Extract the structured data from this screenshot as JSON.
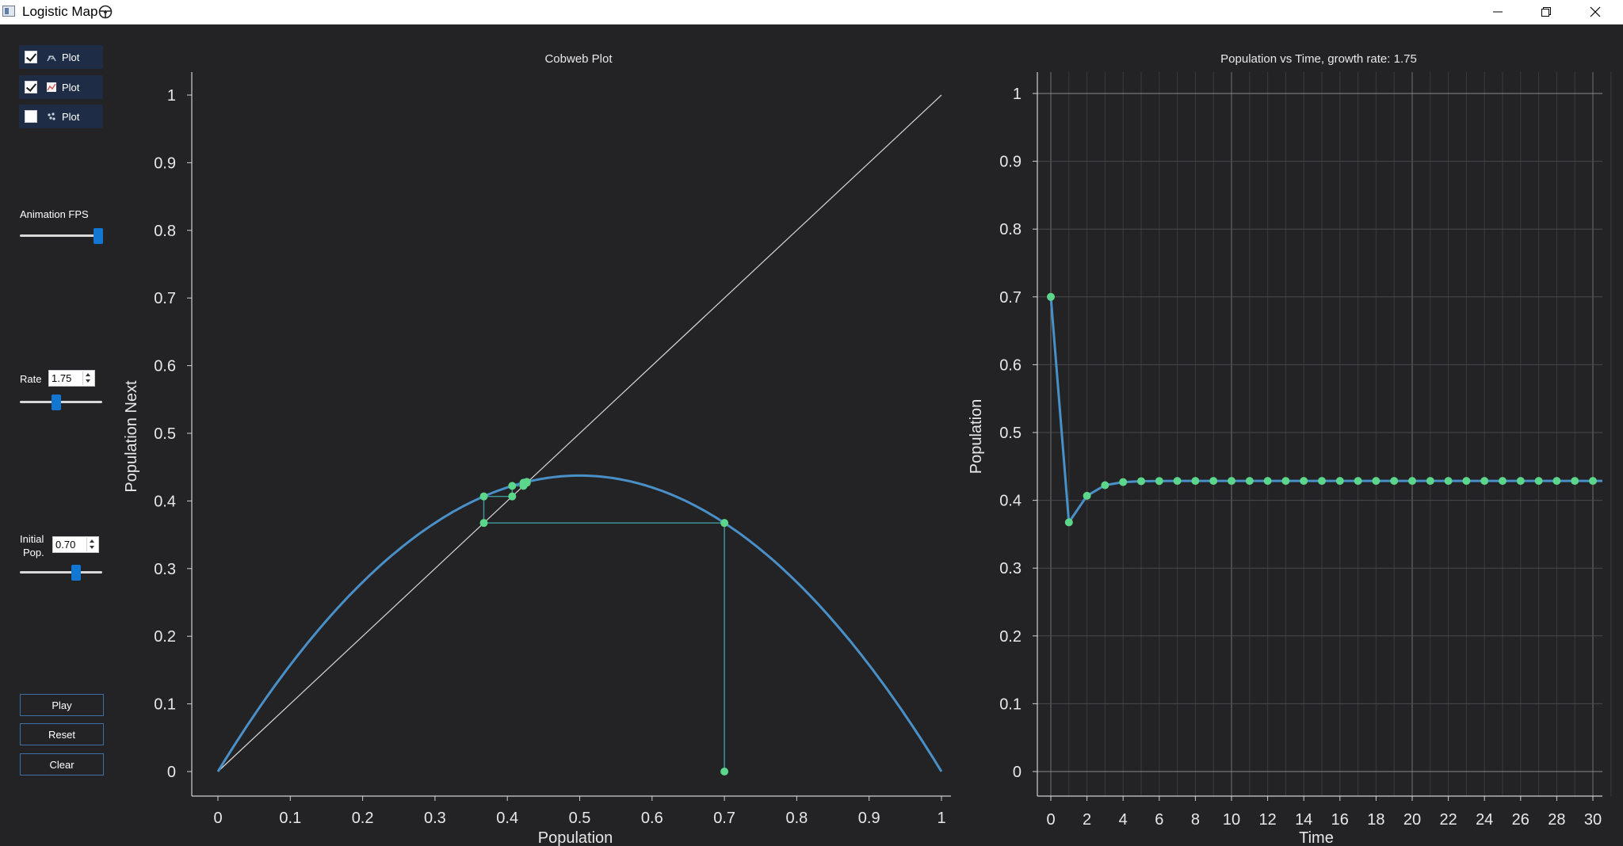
{
  "window": {
    "title": "Logistic Map",
    "controls": {
      "minimize": "minimize-icon",
      "maximize": "restore-icon",
      "close": "close-icon"
    }
  },
  "sidebar": {
    "plot_toggles": [
      {
        "label": "Plot",
        "checked": true,
        "icon": "cobweb-plot-icon"
      },
      {
        "label": "Plot",
        "checked": true,
        "icon": "line-plot-icon"
      },
      {
        "label": "Plot",
        "checked": false,
        "icon": "scatter-plot-icon"
      }
    ],
    "fps": {
      "label": "Animation FPS",
      "level": 0.95
    },
    "rate": {
      "label": "Rate",
      "value": "1.75",
      "level": 0.44
    },
    "initial_pop": {
      "label_line1": "Initial",
      "label_line2": "Pop.",
      "value": "0.70",
      "level": 0.68
    },
    "buttons": {
      "play": "Play",
      "reset": "Reset",
      "clear": "Clear"
    }
  },
  "colors": {
    "background": "#232325",
    "curve": "#4a90c8",
    "points": "#5cd68a",
    "cobweb": "#3f9aa0",
    "diagonal": "#d8d8d8",
    "accent": "#1277d3"
  },
  "chart_data": [
    {
      "type": "line",
      "title": "Cobweb Plot",
      "xlabel": "Population",
      "ylabel": "Population Next",
      "xlim": [
        0,
        1
      ],
      "ylim": [
        0,
        1
      ],
      "xticks": [
        "0",
        "0.1",
        "0.2",
        "0.3",
        "0.4",
        "0.5",
        "0.6",
        "0.7",
        "0.8",
        "0.9",
        "1"
      ],
      "yticks": [
        "0",
        "0.1",
        "0.2",
        "0.3",
        "0.4",
        "0.5",
        "0.6",
        "0.7",
        "0.8",
        "0.9",
        "1"
      ],
      "grid": false,
      "rate": 1.75,
      "initial_population": 0.7,
      "series": [
        {
          "kind": "logistic-curve",
          "r": 1.75
        },
        {
          "kind": "diagonal",
          "x": [
            0,
            1
          ],
          "y": [
            0,
            1
          ]
        },
        {
          "kind": "cobweb-points",
          "points": [
            [
              0.7,
              0
            ],
            [
              0.7,
              0.3675
            ],
            [
              0.3675,
              0.3675
            ],
            [
              0.3675,
              0.4067
            ],
            [
              0.4067,
              0.4067
            ],
            [
              0.4067,
              0.4223
            ],
            [
              0.4223,
              0.4223
            ],
            [
              0.4223,
              0.4269
            ],
            [
              0.4269,
              0.4269
            ],
            [
              0.4269,
              0.4282
            ]
          ]
        }
      ]
    },
    {
      "type": "line",
      "title": "Population vs Time, growth rate: 1.75",
      "xlabel": "Time",
      "ylabel": "Population",
      "xlim": [
        0,
        31
      ],
      "ylim": [
        0,
        1
      ],
      "xticks": [
        "0",
        "2",
        "4",
        "6",
        "8",
        "10",
        "12",
        "14",
        "16",
        "18",
        "20",
        "22",
        "24",
        "26",
        "28",
        "30"
      ],
      "yticks": [
        "0",
        "0.1",
        "0.2",
        "0.3",
        "0.4",
        "0.5",
        "0.6",
        "0.7",
        "0.8",
        "0.9",
        "1"
      ],
      "grid": true,
      "x": [
        0,
        1,
        2,
        3,
        4,
        5,
        6,
        7,
        8,
        9,
        10,
        11,
        12,
        13,
        14,
        15,
        16,
        17,
        18,
        19,
        20,
        21,
        22,
        23,
        24,
        25,
        26,
        27,
        28,
        29,
        30
      ],
      "y": [
        0.7,
        0.3675,
        0.4067,
        0.4223,
        0.4269,
        0.4282,
        0.4285,
        0.4286,
        0.4286,
        0.4286,
        0.4286,
        0.4286,
        0.4286,
        0.4286,
        0.4286,
        0.4286,
        0.4286,
        0.4286,
        0.4286,
        0.4286,
        0.4286,
        0.4286,
        0.4286,
        0.4286,
        0.4286,
        0.4286,
        0.4286,
        0.4286,
        0.4286,
        0.4286,
        0.4286
      ]
    }
  ]
}
